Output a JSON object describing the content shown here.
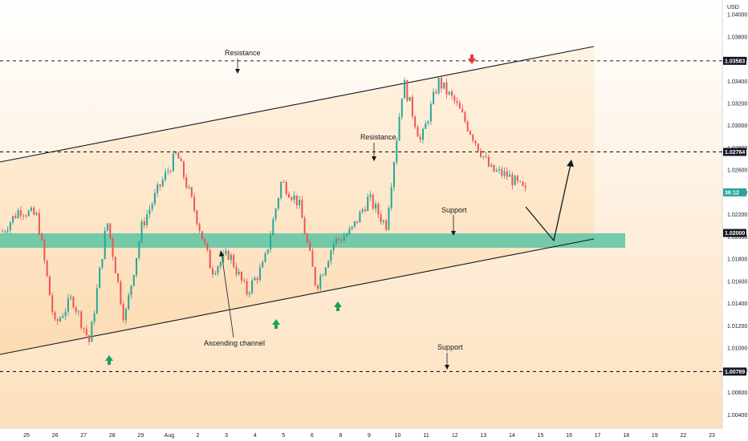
{
  "chart_data": {
    "type": "candlestick",
    "price_unit": "USD",
    "x_tick_labels": [
      "25",
      "26",
      "27",
      "28",
      "29",
      "Aug",
      "2",
      "3",
      "4",
      "5",
      "6",
      "8",
      "9",
      "10",
      "11",
      "12",
      "13",
      "14",
      "15",
      "16",
      "17",
      "18",
      "19",
      "22",
      "23"
    ],
    "y_tick_labels": [
      "1.00400",
      "1.00600",
      "1.00800",
      "1.01000",
      "1.01200",
      "1.01400",
      "1.01600",
      "1.01800",
      "1.02000",
      "1.02200",
      "1.02400",
      "1.02600",
      "1.02800",
      "1.03000",
      "1.03200",
      "1.03400",
      "1.03600",
      "1.03800",
      "1.04000"
    ],
    "ylim": [
      1.0028,
      1.0413
    ],
    "horizontal_levels": [
      {
        "price": 1.03583,
        "label": "1.03583"
      },
      {
        "price": 1.02764,
        "label": "1.02764"
      },
      {
        "price": 1.00789,
        "label": "1.00789"
      }
    ],
    "support_zone": {
      "low": 1.0197,
      "high": 1.021,
      "label": "1.02000"
    },
    "current_price_label": "36:12",
    "annotations": [
      "Resistance",
      "Resistance",
      "Support",
      "Support",
      "Ascending channel"
    ],
    "price_path": [
      {
        "date": "Jul 24",
        "close": 1.0205
      },
      {
        "date": "Jul 25",
        "close": 1.0225
      },
      {
        "date": "Jul 26",
        "close": 1.0218
      },
      {
        "date": "Jul 27",
        "close": 1.012
      },
      {
        "date": "Jul 27 late",
        "close": 1.0145
      },
      {
        "date": "Jul 28",
        "close": 1.0105
      },
      {
        "date": "Jul 28 late",
        "close": 1.0215
      },
      {
        "date": "Jul 29",
        "close": 1.0125
      },
      {
        "date": "Jul 29 late",
        "close": 1.021
      },
      {
        "date": "Aug 1",
        "close": 1.0245
      },
      {
        "date": "Aug 2",
        "close": 1.0275
      },
      {
        "date": "Aug 2 late",
        "close": 1.0225
      },
      {
        "date": "Aug 3",
        "close": 1.017
      },
      {
        "date": "Aug 3 late",
        "close": 1.0185
      },
      {
        "date": "Aug 4",
        "close": 1.015
      },
      {
        "date": "Aug 4 late",
        "close": 1.0175
      },
      {
        "date": "Aug 5",
        "close": 1.025
      },
      {
        "date": "Aug 5 late",
        "close": 1.023
      },
      {
        "date": "Aug 6",
        "close": 1.0155
      },
      {
        "date": "Aug 8",
        "close": 1.0195
      },
      {
        "date": "Aug 9",
        "close": 1.0205
      },
      {
        "date": "Aug 9 late",
        "close": 1.0235
      },
      {
        "date": "Aug 10",
        "close": 1.021
      },
      {
        "date": "Aug 10 late",
        "close": 1.034
      },
      {
        "date": "Aug 11",
        "close": 1.0285
      },
      {
        "date": "Aug 11 late",
        "close": 1.034
      },
      {
        "date": "Aug 12",
        "close": 1.032
      },
      {
        "date": "Aug 13",
        "close": 1.029
      },
      {
        "date": "Aug 13 late",
        "close": 1.026
      },
      {
        "date": "Aug 14",
        "close": 1.0255
      },
      {
        "date": "Aug 14 late",
        "close": 1.024
      }
    ]
  },
  "colors": {
    "up": "#26a69a",
    "down": "#ef5350",
    "zone": "#5cc4a4",
    "channel_fill": "#fde3c2",
    "up_arrow": "#1e9e5e",
    "down_arrow": "#e53935"
  }
}
